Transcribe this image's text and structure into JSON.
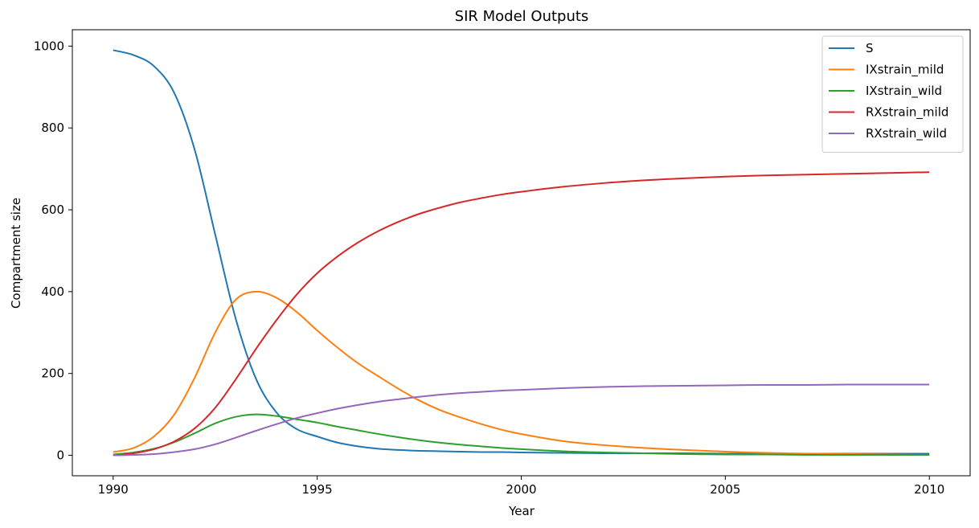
{
  "chart_data": {
    "type": "line",
    "title": "SIR Model Outputs",
    "xlabel": "Year",
    "ylabel": "Compartment size",
    "xlim": [
      1989.0,
      2011.0
    ],
    "ylim": [
      -50,
      1040
    ],
    "xticks": [
      1990,
      1995,
      2000,
      2005,
      2010
    ],
    "yticks": [
      0,
      200,
      400,
      600,
      800,
      1000
    ],
    "legend_position": "top-right",
    "grid": false,
    "x": [
      1990,
      1990.5,
      1991,
      1991.5,
      1992,
      1992.5,
      1993,
      1993.5,
      1994,
      1994.5,
      1995,
      1995.5,
      1996,
      1996.5,
      1997,
      1997.5,
      1998,
      1998.5,
      1999,
      1999.5,
      2000,
      2001,
      2002,
      2003,
      2004,
      2005,
      2006,
      2007,
      2008,
      2009,
      2010
    ],
    "series": [
      {
        "name": "S",
        "color": "#1f77b4",
        "values": [
          990,
          978,
          951,
          885,
          746,
          540,
          335,
          187,
          105,
          64,
          46,
          31,
          22,
          16,
          13,
          11,
          10,
          9,
          8,
          8,
          7,
          6,
          5,
          5,
          5,
          4,
          4,
          4,
          4,
          4,
          4
        ]
      },
      {
        "name": "IXstrain_mild",
        "color": "#ff7f0e",
        "values": [
          8,
          18,
          46,
          100,
          190,
          300,
          380,
          400,
          385,
          350,
          305,
          263,
          225,
          193,
          162,
          134,
          111,
          93,
          77,
          63,
          52,
          35,
          25,
          18,
          13,
          9,
          6,
          4,
          3,
          2,
          1
        ]
      },
      {
        "name": "IXstrain_wild",
        "color": "#2ca02c",
        "values": [
          2,
          7,
          16,
          32,
          54,
          78,
          94,
          100,
          96,
          88,
          80,
          70,
          61,
          52,
          44,
          37,
          31,
          26,
          22,
          18,
          15,
          10,
          7,
          5,
          3,
          2,
          2,
          1,
          1,
          1,
          1
        ]
      },
      {
        "name": "RXstrain_mild",
        "color": "#d62728",
        "values": [
          0,
          5,
          15,
          34,
          66,
          116,
          185,
          260,
          330,
          393,
          445,
          486,
          520,
          548,
          571,
          590,
          605,
          618,
          628,
          637,
          644,
          656,
          665,
          672,
          677,
          681,
          684,
          686,
          688,
          690,
          692
        ]
      },
      {
        "name": "RXstrain_wild",
        "color": "#9467bd",
        "values": [
          0,
          1,
          3,
          8,
          15,
          27,
          43,
          60,
          76,
          91,
          103,
          114,
          123,
          131,
          137,
          143,
          148,
          152,
          155,
          158,
          160,
          164,
          167,
          169,
          170,
          171,
          172,
          172,
          173,
          173,
          173
        ]
      }
    ]
  }
}
